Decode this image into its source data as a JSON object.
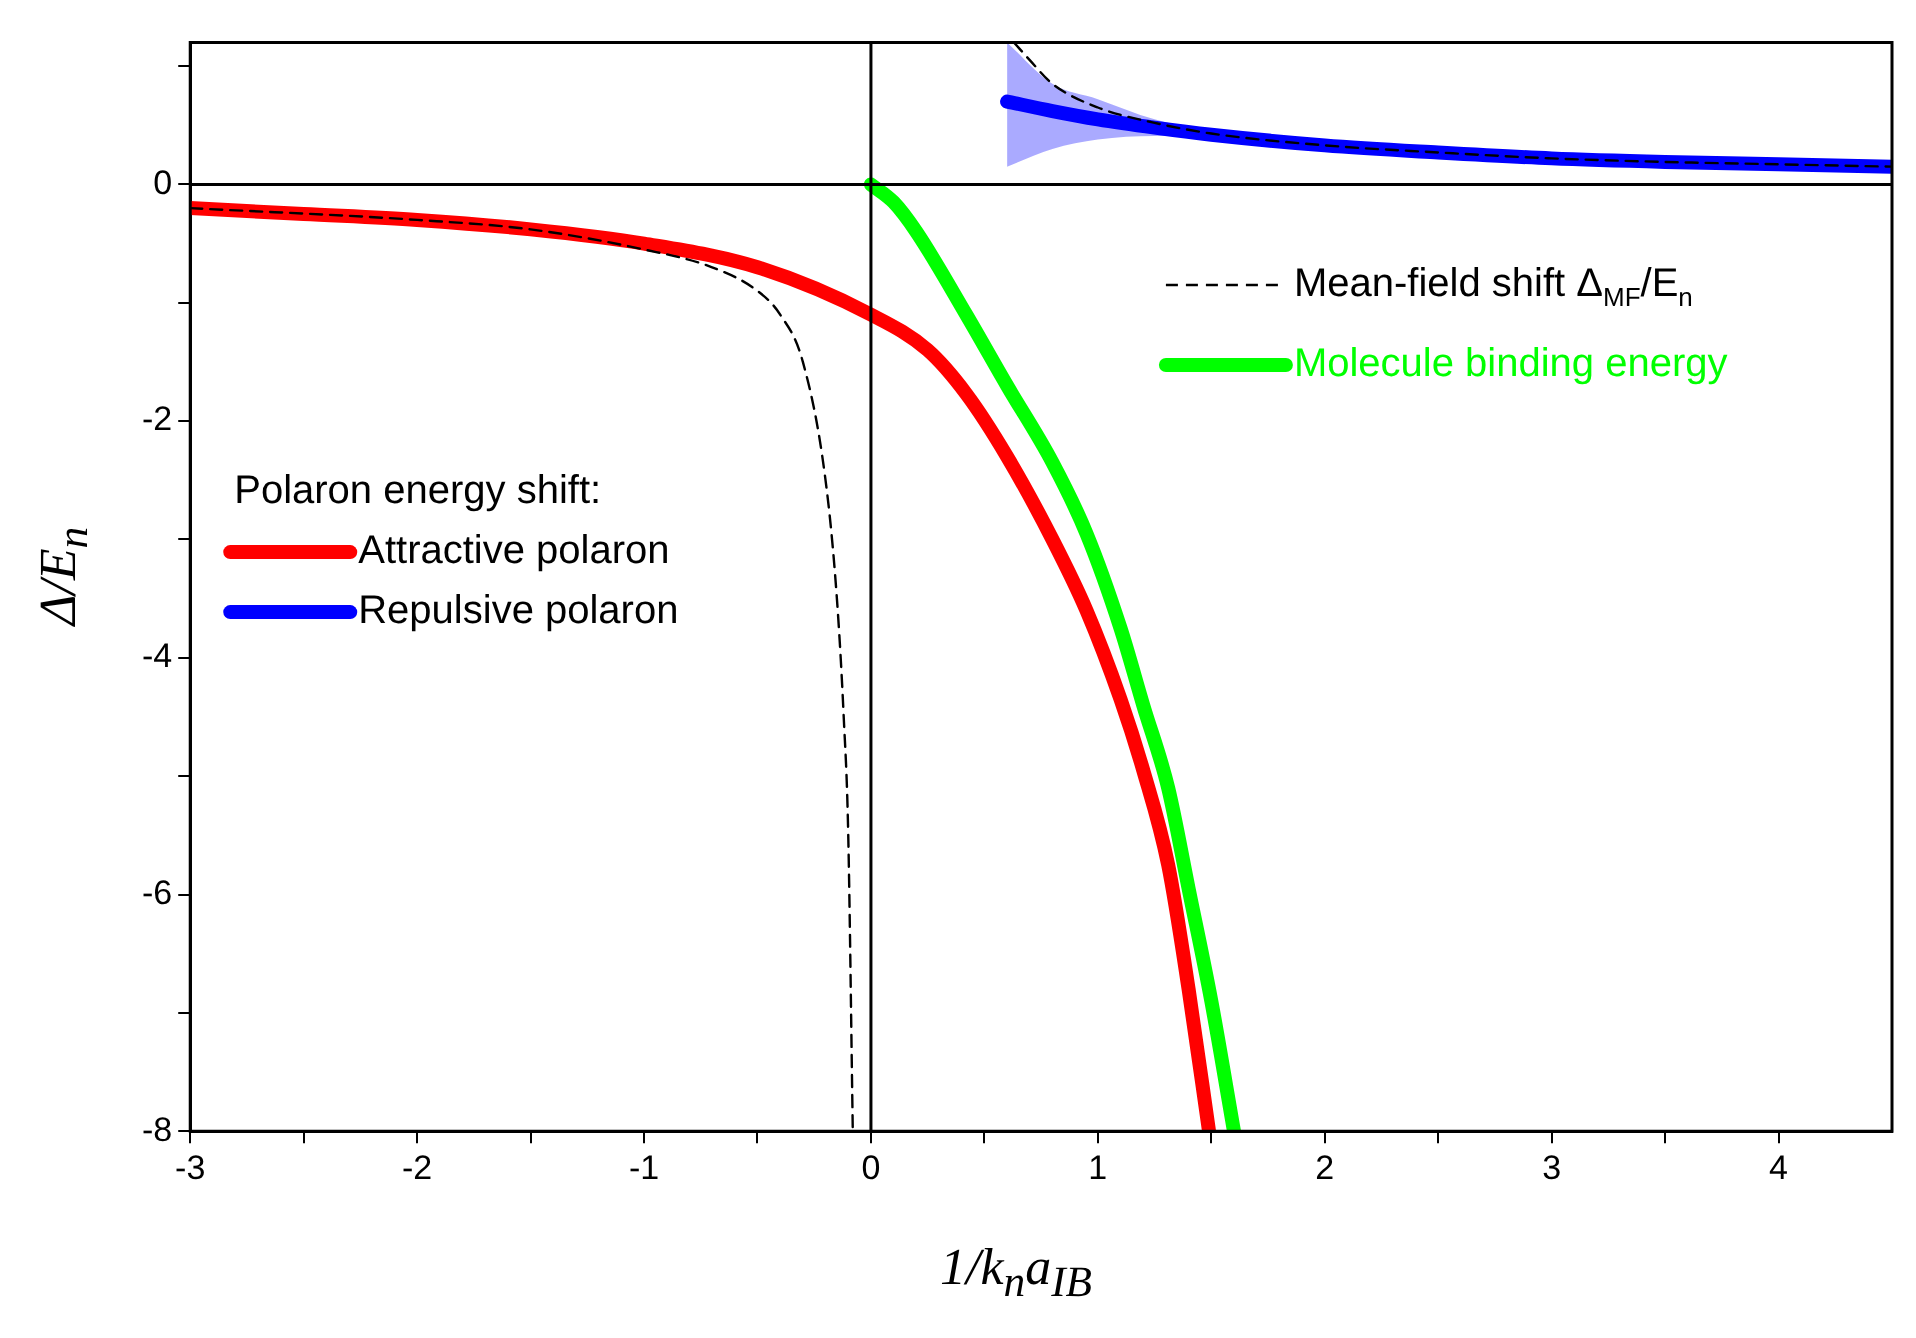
{
  "chart_data": {
    "type": "line",
    "xlabel": "1/k$_{n}$a$_{IB}$",
    "ylabel": "Δ/E$_{n}$",
    "legend_title": "Polaron energy shift:",
    "legend": "left",
    "grid": false,
    "xlim": [
      -3,
      4.5
    ],
    "ylim": [
      -8,
      1.2
    ],
    "xticks": [
      -3,
      {
        "value": -2.5,
        "label": null
      },
      -2,
      {
        "value": -1.5,
        "label": null
      },
      -1,
      {
        "value": -0.5,
        "label": null
      },
      0,
      {
        "value": 0.5,
        "label": null
      },
      1,
      {
        "value": 1.5,
        "label": null
      },
      2,
      {
        "value": 2.5,
        "label": null
      },
      3,
      {
        "value": 3.5,
        "label": null
      },
      4
    ],
    "yticks": [
      -8,
      {
        "value": -7,
        "label": null
      },
      -6,
      {
        "value": -5,
        "label": null
      },
      -4,
      {
        "value": -3,
        "label": null
      },
      -2,
      {
        "value": -1,
        "label": null
      },
      0,
      {
        "value": 1,
        "label": null
      }
    ],
    "ref_lines": [
      {
        "axis": "y",
        "value": 0,
        "color": "#000000"
      },
      {
        "axis": "x",
        "value": 0,
        "color": "#000000"
      }
    ],
    "series": [
      {
        "name": "Attractive polaron",
        "color": "#ff0000",
        "line_style": "solid",
        "x": [
          -3,
          -2.5,
          -2,
          -1.5,
          -1,
          -0.5,
          0,
          0.25,
          0.42,
          0.6,
          0.8,
          0.95,
          1.1,
          1.2,
          1.31,
          1.4,
          1.49
        ],
        "values": [
          -0.2,
          -0.25,
          -0.3,
          -0.38,
          -0.5,
          -0.7,
          -1.1,
          -1.4,
          -1.77,
          -2.3,
          -3,
          -3.6,
          -4.35,
          -4.95,
          -5.75,
          -6.8,
          -8
        ]
      },
      {
        "name": "Repulsive polaron",
        "color": "#0000ff",
        "line_style": "solid",
        "x": [
          0.6,
          0.8,
          1,
          1.25,
          1.5,
          2,
          2.5,
          3,
          3.5,
          4,
          4.5
        ],
        "values": [
          0.7,
          0.62,
          0.55,
          0.48,
          0.42,
          0.33,
          0.27,
          0.22,
          0.19,
          0.17,
          0.15
        ],
        "lower": [
          0.15,
          0.3,
          0.38,
          0.41,
          0.41,
          0.33,
          0.27,
          0.22,
          0.19,
          0.17,
          0.15
        ],
        "upper": [
          1.2,
          0.85,
          0.72,
          0.55,
          0.45,
          0.33,
          0.27,
          0.22,
          0.19,
          0.17,
          0.15
        ]
      },
      {
        "name": "Mean-field shift Δ$_{MF}$/E$_{n}$",
        "color": "#000000",
        "line_style": "dashed",
        "x": [
          -3,
          -2,
          -1.5,
          -1,
          -0.7,
          -0.5,
          -0.4,
          -0.3,
          -0.2,
          -0.15,
          -0.12,
          -0.1,
          -0.08,
          0.05,
          0.63,
          0.7,
          0.8,
          1,
          1.25,
          1.5,
          2,
          2.5,
          3,
          3.5,
          4,
          4.5
        ],
        "values": [
          -0.2,
          -0.3,
          -0.38,
          -0.55,
          -0.7,
          -0.9,
          -1.1,
          -1.5,
          -2.5,
          -3.5,
          -4.5,
          -5.5,
          -8,
          null,
          1.2,
          1.05,
          0.85,
          0.65,
          0.52,
          0.43,
          0.33,
          0.27,
          0.22,
          0.19,
          0.17,
          0.15
        ]
      },
      {
        "name": "Molecule binding energy",
        "color": "#00ff00",
        "line_style": "solid",
        "x": [
          0,
          0.1,
          0.2,
          0.42,
          0.6,
          0.8,
          0.95,
          1.1,
          1.2,
          1.31,
          1.4,
          1.5,
          1.6
        ],
        "values": [
          0,
          -0.15,
          -0.4,
          -1.1,
          -1.7,
          -2.35,
          -2.95,
          -3.75,
          -4.4,
          -5.1,
          -5.95,
          -6.9,
          -8
        ]
      }
    ]
  }
}
